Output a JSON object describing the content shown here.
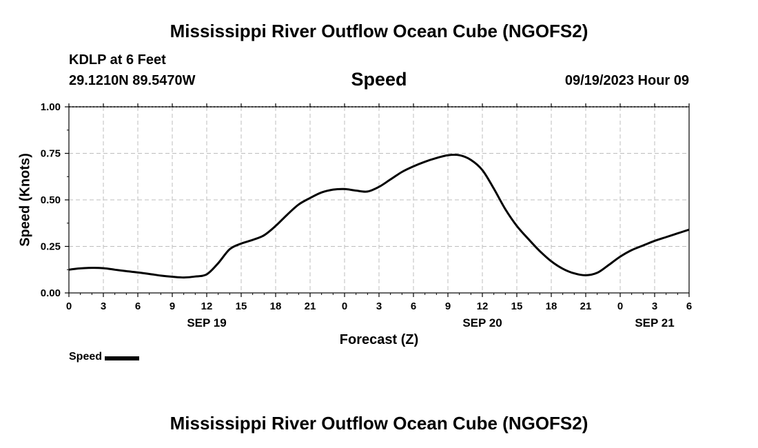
{
  "header": {
    "title": "Mississippi River Outflow Ocean Cube (NGOFS2)",
    "station": "KDLP at 6 Feet",
    "coordinates": "29.1210N  89.5470W",
    "plot_title": "Speed",
    "run_time": "09/19/2023 Hour 09"
  },
  "footer": {
    "title": "Mississippi River Outflow Ocean Cube (NGOFS2)"
  },
  "chart_data": {
    "type": "line",
    "title": "Speed",
    "xlabel": "Forecast (Z)",
    "ylabel": "Speed (Knots)",
    "ylim": [
      0,
      1
    ],
    "xlim_hours": [
      0,
      54
    ],
    "grid": true,
    "legend_position": "bottom-left",
    "y_ticks": [
      "0.00",
      "0.25",
      "0.50",
      "0.75",
      "1.00"
    ],
    "y_tick_values": [
      0,
      0.25,
      0.5,
      0.75,
      1.0
    ],
    "x_ticks": [
      "0",
      "3",
      "6",
      "9",
      "12",
      "15",
      "18",
      "21",
      "0",
      "3",
      "6",
      "9",
      "12",
      "15",
      "18",
      "21",
      "0",
      "3",
      "6"
    ],
    "date_labels": [
      {
        "label": "SEP 19",
        "hour": 12
      },
      {
        "label": "SEP 20",
        "hour": 36
      },
      {
        "label": "SEP 21",
        "hour": 51
      }
    ],
    "series": [
      {
        "name": "Speed",
        "color": "#000000",
        "x": [
          0,
          1,
          2,
          3,
          4,
          5,
          6,
          7,
          8,
          9,
          10,
          11,
          12,
          13,
          14,
          15,
          16,
          17,
          18,
          19,
          20,
          21,
          22,
          23,
          24,
          25,
          26,
          27,
          28,
          29,
          30,
          31,
          32,
          33,
          34,
          35,
          36,
          37,
          38,
          39,
          40,
          41,
          42,
          43,
          44,
          45,
          46,
          47,
          48,
          49,
          50,
          51,
          52,
          53,
          54
        ],
        "y": [
          0.125,
          0.132,
          0.135,
          0.133,
          0.125,
          0.117,
          0.11,
          0.102,
          0.093,
          0.087,
          0.083,
          0.088,
          0.1,
          0.16,
          0.235,
          0.265,
          0.285,
          0.31,
          0.36,
          0.42,
          0.475,
          0.51,
          0.54,
          0.555,
          0.558,
          0.55,
          0.545,
          0.57,
          0.61,
          0.65,
          0.68,
          0.705,
          0.725,
          0.74,
          0.74,
          0.715,
          0.66,
          0.56,
          0.45,
          0.36,
          0.29,
          0.225,
          0.17,
          0.13,
          0.105,
          0.095,
          0.108,
          0.15,
          0.195,
          0.23,
          0.255,
          0.28,
          0.3,
          0.32,
          0.34
        ]
      }
    ]
  },
  "legend": {
    "label": "Speed",
    "color": "#000000"
  }
}
